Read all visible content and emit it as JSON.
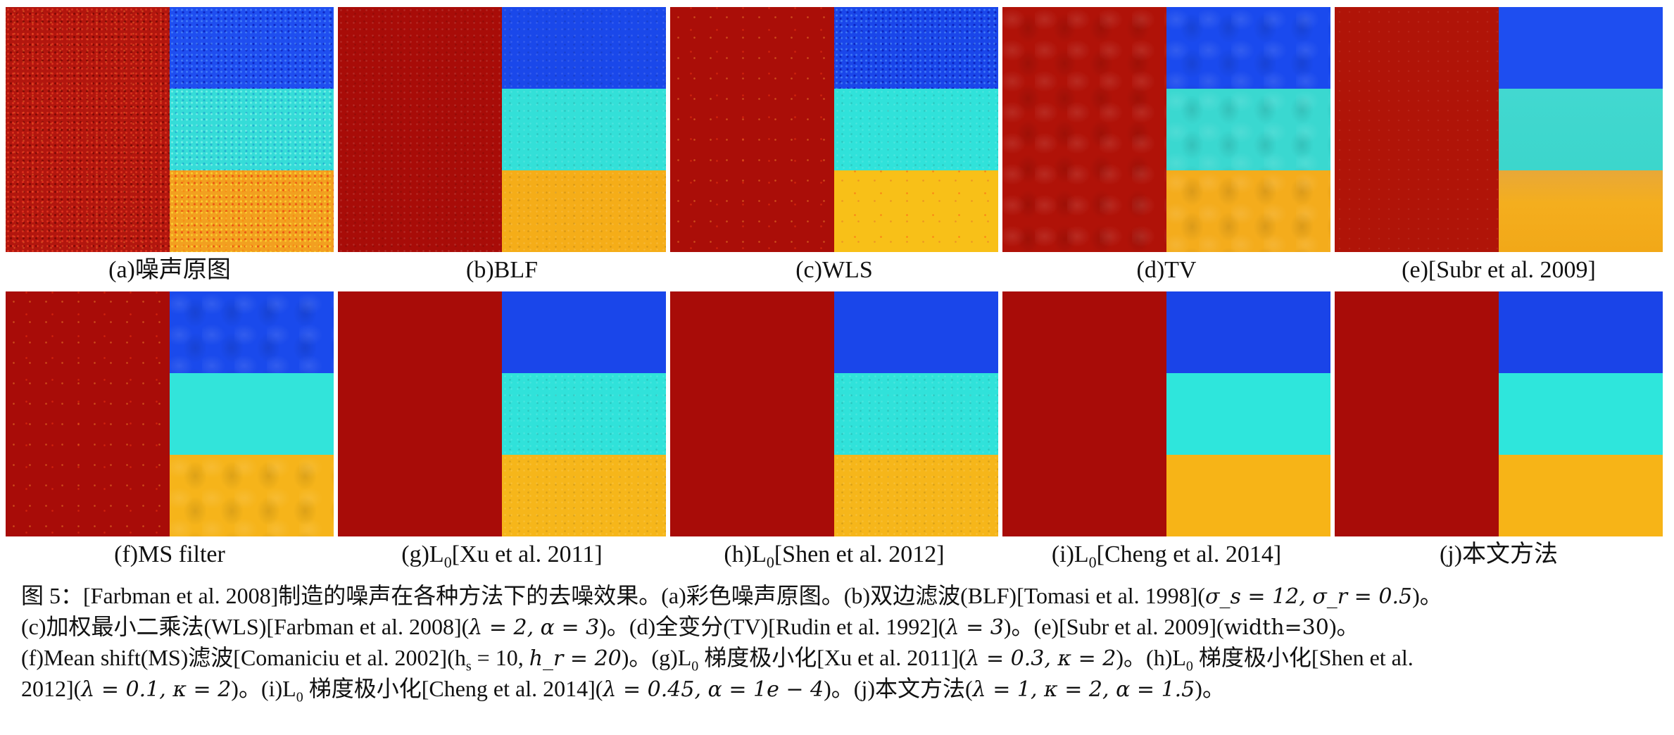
{
  "figure": {
    "colors": {
      "red": "#a80c08",
      "blue": "#1a44e8",
      "cyan": "#2ee6dc",
      "orange": "#f7b417",
      "red_noisy": "#b81a10",
      "orange_noisy": "#f2a020"
    },
    "row1": [
      {
        "label": "(a)噪声原图"
      },
      {
        "label": "(b)BLF"
      },
      {
        "label": "(c)WLS"
      },
      {
        "label": "(d)TV"
      },
      {
        "label": "(e)[Subr et al. 2009]"
      }
    ],
    "row2": [
      {
        "label": "(f)MS filter"
      },
      {
        "pre": "(g)L",
        "sub": "0",
        "post": "[Xu et al. 2011]"
      },
      {
        "pre": "(h)L",
        "sub": "0",
        "post": "[Shen et al. 2012]"
      },
      {
        "pre": "(i)L",
        "sub": "0",
        "post": "[Cheng et al. 2014]"
      },
      {
        "label": "(j)本文方法"
      }
    ]
  },
  "caption": {
    "l1a": "图 5：[Farbman et al. 2008]制造的噪声在各种方法下的去噪效果。(a)彩色噪声原图。(b)双边滤波(BLF)[Tomasi et al. 1998](",
    "l1m": "σ_s = 12, σ_r = 0.5",
    "l1b": ")。",
    "l2a": "(c)加权最小二乘法(WLS)[Farbman et al. 2008](",
    "l2m": "λ = 2, α = 3",
    "l2b": ")。(d)全变分(TV)[Rudin et al. 1992](",
    "l2m2": "λ = 3",
    "l2c": ")。(e)[Subr et al. 2009](",
    "l2m3": "width=30",
    "l2d": ")。",
    "l3a": "(f)Mean shift(MS)滤波[Comaniciu et al. 2002](h",
    "l3s": "s",
    "l3b": " = 10, ",
    "l3m": "h_r = 20",
    "l3c": ")。(g)L",
    "l3d": " 梯度极小化[Xu et al. 2011](",
    "l3m2": "λ = 0.3, κ = 2",
    "l3e": ")。(h)L",
    "l3f": " 梯度极小化[Shen et al.",
    "l4a": "2012](",
    "l4m": "λ = 0.1, κ = 2",
    "l4b": ")。(i)L",
    "l4c": " 梯度极小化[Cheng et al. 2014](",
    "l4m2": "λ = 0.45, α = 1e − 4",
    "l4d": ")。(j)本文方法(",
    "l4m3": "λ = 1, κ = 2, α = 1.5",
    "l4e": ")。",
    "zero": "0"
  }
}
